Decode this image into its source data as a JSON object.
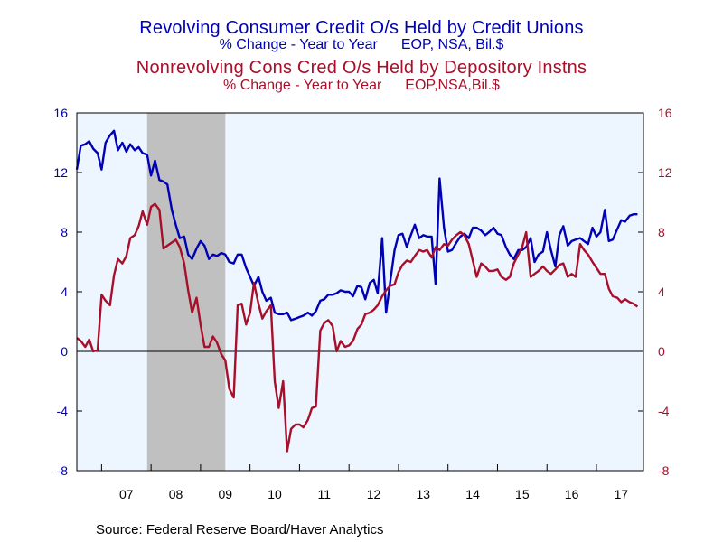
{
  "chart_data": {
    "type": "line",
    "titles": {
      "series1_title": "Revolving Consumer Credit O/s Held by Credit Unions",
      "series1_sub_left": "% Change - Year to Year",
      "series1_sub_right": "EOP, NSA, Bil.$",
      "series2_title": "Nonrevolving Cons Cred O/s Held by Depository Instns",
      "series2_sub_left": "% Change - Year to Year",
      "series2_sub_right": "EOP,NSA,Bil.$"
    },
    "source": "Source:  Federal Reserve Board/Haver Analytics",
    "left_axis": {
      "ylim": [
        -8,
        16
      ],
      "ticks": [
        "16",
        "12",
        "8",
        "4",
        "0",
        "-4",
        "-8"
      ],
      "color": "#0000b4"
    },
    "right_axis": {
      "ylim": [
        -8,
        16
      ],
      "ticks": [
        "16",
        "12",
        "8",
        "4",
        "0",
        "-4",
        "-8"
      ],
      "color": "#a80f2a"
    },
    "x_axis": {
      "start": 2006.5,
      "end": 2017.95,
      "labels": [
        "07",
        "08",
        "09",
        "10",
        "11",
        "12",
        "13",
        "14",
        "15",
        "16",
        "17"
      ]
    },
    "recession": {
      "start": 2007.92,
      "end": 2009.5
    },
    "zero_line": true,
    "series": [
      {
        "color": "#0000b4",
        "points": [
          [
            2006.5,
            12.2
          ],
          [
            2006.58,
            13.8
          ],
          [
            2006.67,
            13.9
          ],
          [
            2006.75,
            14.1
          ],
          [
            2006.83,
            13.6
          ],
          [
            2006.92,
            13.3
          ],
          [
            2007.0,
            12.2
          ],
          [
            2007.08,
            14.0
          ],
          [
            2007.17,
            14.5
          ],
          [
            2007.25,
            14.8
          ],
          [
            2007.33,
            13.5
          ],
          [
            2007.42,
            14.0
          ],
          [
            2007.5,
            13.4
          ],
          [
            2007.58,
            13.9
          ],
          [
            2007.67,
            13.5
          ],
          [
            2007.75,
            13.7
          ],
          [
            2007.83,
            13.3
          ],
          [
            2007.92,
            13.2
          ],
          [
            2008.0,
            11.8
          ],
          [
            2008.08,
            12.8
          ],
          [
            2008.17,
            11.5
          ],
          [
            2008.25,
            11.4
          ],
          [
            2008.33,
            11.2
          ],
          [
            2008.42,
            9.5
          ],
          [
            2008.5,
            8.5
          ],
          [
            2008.58,
            7.6
          ],
          [
            2008.67,
            7.7
          ],
          [
            2008.75,
            6.5
          ],
          [
            2008.83,
            6.2
          ],
          [
            2008.92,
            6.9
          ],
          [
            2009.0,
            7.4
          ],
          [
            2009.08,
            7.1
          ],
          [
            2009.17,
            6.2
          ],
          [
            2009.25,
            6.5
          ],
          [
            2009.33,
            6.4
          ],
          [
            2009.42,
            6.6
          ],
          [
            2009.5,
            6.5
          ],
          [
            2009.58,
            6.0
          ],
          [
            2009.67,
            5.9
          ],
          [
            2009.75,
            6.5
          ],
          [
            2009.83,
            6.5
          ],
          [
            2009.92,
            5.6
          ],
          [
            2010.0,
            5.0
          ],
          [
            2010.08,
            4.4
          ],
          [
            2010.17,
            5.0
          ],
          [
            2010.25,
            4.0
          ],
          [
            2010.33,
            3.4
          ],
          [
            2010.42,
            3.6
          ],
          [
            2010.5,
            2.6
          ],
          [
            2010.58,
            2.5
          ],
          [
            2010.67,
            2.5
          ],
          [
            2010.75,
            2.6
          ],
          [
            2010.83,
            2.1
          ],
          [
            2010.92,
            2.2
          ],
          [
            2011.0,
            2.3
          ],
          [
            2011.08,
            2.4
          ],
          [
            2011.17,
            2.6
          ],
          [
            2011.25,
            2.4
          ],
          [
            2011.33,
            2.7
          ],
          [
            2011.42,
            3.4
          ],
          [
            2011.5,
            3.5
          ],
          [
            2011.58,
            3.8
          ],
          [
            2011.67,
            3.8
          ],
          [
            2011.75,
            3.9
          ],
          [
            2011.83,
            4.1
          ],
          [
            2011.92,
            4.0
          ],
          [
            2012.0,
            4.0
          ],
          [
            2012.08,
            3.7
          ],
          [
            2012.17,
            4.4
          ],
          [
            2012.25,
            4.3
          ],
          [
            2012.33,
            3.5
          ],
          [
            2012.42,
            4.6
          ],
          [
            2012.5,
            4.8
          ],
          [
            2012.58,
            3.9
          ],
          [
            2012.67,
            7.6
          ],
          [
            2012.75,
            2.6
          ],
          [
            2012.83,
            4.6
          ],
          [
            2012.92,
            6.8
          ],
          [
            2013.0,
            7.8
          ],
          [
            2013.08,
            7.9
          ],
          [
            2013.17,
            7.0
          ],
          [
            2013.25,
            7.8
          ],
          [
            2013.33,
            8.5
          ],
          [
            2013.42,
            7.6
          ],
          [
            2013.5,
            7.8
          ],
          [
            2013.58,
            7.7
          ],
          [
            2013.67,
            7.7
          ],
          [
            2013.75,
            4.5
          ],
          [
            2013.83,
            11.6
          ],
          [
            2013.92,
            8.3
          ],
          [
            2014.0,
            6.7
          ],
          [
            2014.08,
            6.8
          ],
          [
            2014.17,
            7.3
          ],
          [
            2014.25,
            7.7
          ],
          [
            2014.33,
            7.9
          ],
          [
            2014.42,
            7.6
          ],
          [
            2014.5,
            8.3
          ],
          [
            2014.58,
            8.3
          ],
          [
            2014.67,
            8.1
          ],
          [
            2014.75,
            7.8
          ],
          [
            2014.83,
            8.0
          ],
          [
            2014.92,
            8.3
          ],
          [
            2015.0,
            7.9
          ],
          [
            2015.08,
            7.8
          ],
          [
            2015.17,
            7.0
          ],
          [
            2015.25,
            6.5
          ],
          [
            2015.33,
            6.2
          ],
          [
            2015.42,
            6.8
          ],
          [
            2015.5,
            6.8
          ],
          [
            2015.58,
            7.0
          ],
          [
            2015.67,
            7.6
          ],
          [
            2015.75,
            6.0
          ],
          [
            2015.83,
            6.5
          ],
          [
            2015.92,
            6.7
          ],
          [
            2016.0,
            8.0
          ],
          [
            2016.08,
            6.8
          ],
          [
            2016.17,
            5.7
          ],
          [
            2016.25,
            7.8
          ],
          [
            2016.33,
            8.4
          ],
          [
            2016.42,
            7.1
          ],
          [
            2016.5,
            7.4
          ],
          [
            2016.58,
            7.5
          ],
          [
            2016.67,
            7.6
          ],
          [
            2016.75,
            7.4
          ],
          [
            2016.83,
            7.2
          ],
          [
            2016.92,
            8.3
          ],
          [
            2017.0,
            7.7
          ],
          [
            2017.08,
            8.0
          ],
          [
            2017.17,
            9.5
          ],
          [
            2017.25,
            7.4
          ],
          [
            2017.33,
            7.5
          ],
          [
            2017.42,
            8.2
          ],
          [
            2017.5,
            8.8
          ],
          [
            2017.58,
            8.7
          ],
          [
            2017.67,
            9.1
          ],
          [
            2017.75,
            9.2
          ],
          [
            2017.83,
            9.2
          ]
        ]
      },
      {
        "color": "#a80f2a",
        "points": [
          [
            2006.5,
            0.9
          ],
          [
            2006.58,
            0.7
          ],
          [
            2006.67,
            0.3
          ],
          [
            2006.75,
            0.8
          ],
          [
            2006.83,
            0.0
          ],
          [
            2006.92,
            0.1
          ],
          [
            2007.0,
            3.8
          ],
          [
            2007.08,
            3.4
          ],
          [
            2007.17,
            3.1
          ],
          [
            2007.25,
            5.1
          ],
          [
            2007.33,
            6.2
          ],
          [
            2007.42,
            5.9
          ],
          [
            2007.5,
            6.4
          ],
          [
            2007.58,
            7.6
          ],
          [
            2007.67,
            7.8
          ],
          [
            2007.75,
            8.4
          ],
          [
            2007.83,
            9.4
          ],
          [
            2007.92,
            8.5
          ],
          [
            2008.0,
            9.7
          ],
          [
            2008.08,
            9.9
          ],
          [
            2008.17,
            9.5
          ],
          [
            2008.25,
            6.9
          ],
          [
            2008.33,
            7.1
          ],
          [
            2008.42,
            7.3
          ],
          [
            2008.5,
            7.5
          ],
          [
            2008.58,
            7.0
          ],
          [
            2008.67,
            5.9
          ],
          [
            2008.75,
            4.1
          ],
          [
            2008.83,
            2.6
          ],
          [
            2008.92,
            3.6
          ],
          [
            2009.0,
            1.8
          ],
          [
            2009.08,
            0.3
          ],
          [
            2009.17,
            0.3
          ],
          [
            2009.25,
            1.0
          ],
          [
            2009.33,
            0.6
          ],
          [
            2009.42,
            -0.2
          ],
          [
            2009.5,
            -0.6
          ],
          [
            2009.58,
            -2.5
          ],
          [
            2009.67,
            -3.1
          ],
          [
            2009.75,
            3.1
          ],
          [
            2009.83,
            3.2
          ],
          [
            2009.92,
            1.8
          ],
          [
            2010.0,
            2.6
          ],
          [
            2010.08,
            4.6
          ],
          [
            2010.17,
            3.2
          ],
          [
            2010.25,
            2.2
          ],
          [
            2010.33,
            2.7
          ],
          [
            2010.42,
            3.1
          ],
          [
            2010.5,
            -2.0
          ],
          [
            2010.58,
            -3.8
          ],
          [
            2010.67,
            -2.0
          ],
          [
            2010.75,
            -6.7
          ],
          [
            2010.83,
            -5.2
          ],
          [
            2010.92,
            -4.9
          ],
          [
            2011.0,
            -4.9
          ],
          [
            2011.08,
            -5.1
          ],
          [
            2011.17,
            -4.6
          ],
          [
            2011.25,
            -3.8
          ],
          [
            2011.33,
            -3.7
          ],
          [
            2011.42,
            1.4
          ],
          [
            2011.5,
            1.9
          ],
          [
            2011.58,
            2.1
          ],
          [
            2011.67,
            1.7
          ],
          [
            2011.75,
            0.0
          ],
          [
            2011.83,
            0.7
          ],
          [
            2011.92,
            0.3
          ],
          [
            2012.0,
            0.4
          ],
          [
            2012.08,
            0.7
          ],
          [
            2012.17,
            1.5
          ],
          [
            2012.25,
            1.8
          ],
          [
            2012.33,
            2.5
          ],
          [
            2012.42,
            2.6
          ],
          [
            2012.5,
            2.8
          ],
          [
            2012.58,
            3.1
          ],
          [
            2012.67,
            3.7
          ],
          [
            2012.75,
            4.1
          ],
          [
            2012.83,
            4.4
          ],
          [
            2012.92,
            4.5
          ],
          [
            2013.0,
            5.3
          ],
          [
            2013.08,
            5.8
          ],
          [
            2013.17,
            6.1
          ],
          [
            2013.25,
            6.0
          ],
          [
            2013.33,
            6.4
          ],
          [
            2013.42,
            6.8
          ],
          [
            2013.5,
            6.7
          ],
          [
            2013.58,
            6.8
          ],
          [
            2013.67,
            6.3
          ],
          [
            2013.75,
            7.0
          ],
          [
            2013.83,
            6.8
          ],
          [
            2013.92,
            7.2
          ],
          [
            2014.0,
            7.1
          ],
          [
            2014.08,
            7.5
          ],
          [
            2014.17,
            7.8
          ],
          [
            2014.25,
            8.0
          ],
          [
            2014.33,
            7.8
          ],
          [
            2014.42,
            7.2
          ],
          [
            2014.5,
            6.1
          ],
          [
            2014.58,
            5.0
          ],
          [
            2014.67,
            5.9
          ],
          [
            2014.75,
            5.7
          ],
          [
            2014.83,
            5.4
          ],
          [
            2014.92,
            5.4
          ],
          [
            2015.0,
            5.5
          ],
          [
            2015.08,
            5.0
          ],
          [
            2015.17,
            4.8
          ],
          [
            2015.25,
            5.0
          ],
          [
            2015.33,
            5.9
          ],
          [
            2015.42,
            6.5
          ],
          [
            2015.5,
            7.0
          ],
          [
            2015.58,
            8.0
          ],
          [
            2015.67,
            5.0
          ],
          [
            2015.75,
            5.2
          ],
          [
            2015.83,
            5.4
          ],
          [
            2015.92,
            5.7
          ],
          [
            2016.0,
            5.4
          ],
          [
            2016.08,
            5.2
          ],
          [
            2016.17,
            5.5
          ],
          [
            2016.25,
            5.8
          ],
          [
            2016.33,
            5.9
          ],
          [
            2016.42,
            5.0
          ],
          [
            2016.5,
            5.2
          ],
          [
            2016.58,
            5.0
          ],
          [
            2016.67,
            7.2
          ],
          [
            2016.75,
            6.8
          ],
          [
            2016.83,
            6.5
          ],
          [
            2016.92,
            6.0
          ],
          [
            2017.0,
            5.6
          ],
          [
            2017.08,
            5.2
          ],
          [
            2017.17,
            5.2
          ],
          [
            2017.25,
            4.2
          ],
          [
            2017.33,
            3.7
          ],
          [
            2017.42,
            3.6
          ],
          [
            2017.5,
            3.3
          ],
          [
            2017.58,
            3.5
          ],
          [
            2017.67,
            3.3
          ],
          [
            2017.75,
            3.2
          ],
          [
            2017.83,
            3.0
          ]
        ]
      }
    ]
  }
}
